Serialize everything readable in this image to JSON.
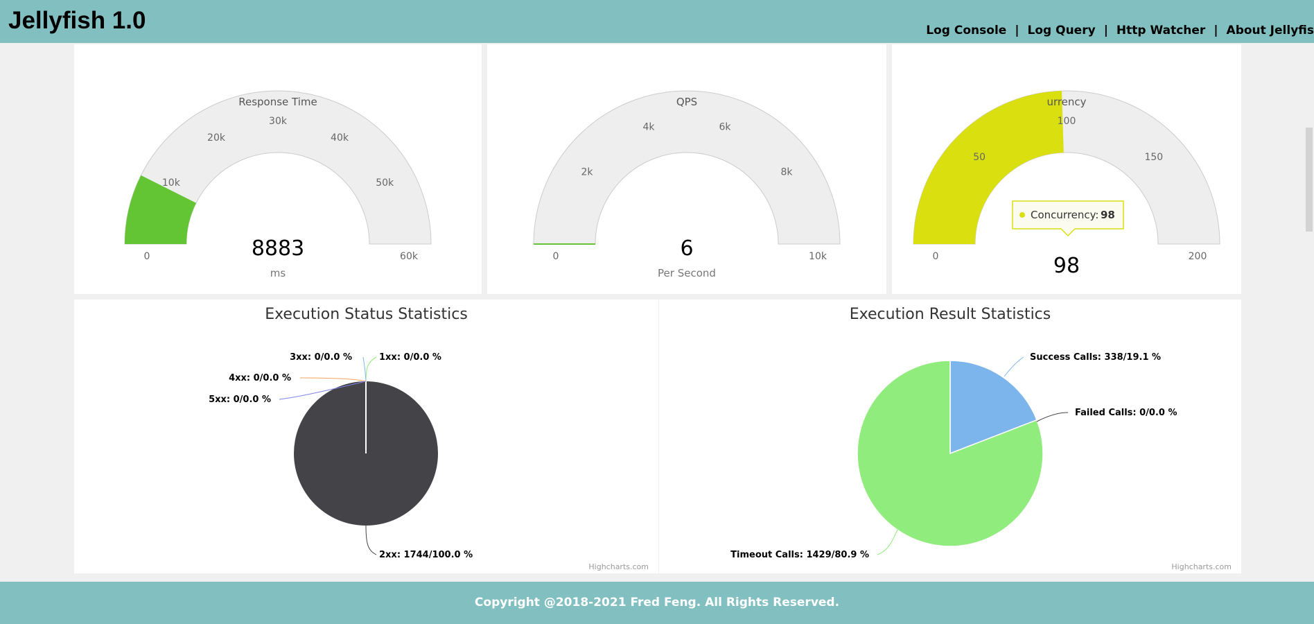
{
  "app": {
    "title": "Jellyfish 1.0"
  },
  "nav": {
    "items": [
      "Log Console",
      "Log Query",
      "Http Watcher",
      "About Jellyfis"
    ],
    "separator": "|"
  },
  "gauges": [
    {
      "title": "Response Time",
      "value": 8883,
      "value_label": "8883",
      "unit": "ms",
      "min": 0,
      "max": 60000,
      "color": "#63c434",
      "ticks": [
        "0",
        "10k",
        "20k",
        "30k",
        "40k",
        "50k",
        "60k"
      ]
    },
    {
      "title": "QPS",
      "value": 6,
      "value_label": "6",
      "unit": "Per Second",
      "min": 0,
      "max": 10000,
      "color": "#63c434",
      "ticks": [
        "0",
        "2k",
        "4k",
        "6k",
        "8k",
        "10k"
      ]
    },
    {
      "title": "Concurrency",
      "title_visible": "urrency",
      "value": 98,
      "value_label": "98",
      "unit": "",
      "min": 0,
      "max": 200,
      "color": "#dadf10",
      "ticks": [
        "0",
        "50",
        "100",
        "150",
        "200"
      ],
      "tooltip": {
        "label": "Concurrency:",
        "value": "98"
      }
    }
  ],
  "chart_data": [
    {
      "type": "pie",
      "title": "Execution Status Statistics",
      "series": [
        {
          "name": "1xx",
          "count": 0,
          "percent": 0.0,
          "label": "1xx: 0/0.0 %",
          "color": "#90ed7d"
        },
        {
          "name": "2xx",
          "count": 1744,
          "percent": 100.0,
          "label": "2xx: 1744/100.0 %",
          "color": "#434348"
        },
        {
          "name": "3xx",
          "count": 0,
          "percent": 0.0,
          "label": "3xx: 0/0.0 %",
          "color": "#7cb5ec"
        },
        {
          "name": "4xx",
          "count": 0,
          "percent": 0.0,
          "label": "4xx: 0/0.0 %",
          "color": "#f7a35c"
        },
        {
          "name": "5xx",
          "count": 0,
          "percent": 0.0,
          "label": "5xx: 0/0.0 %",
          "color": "#8085e9"
        }
      ],
      "credit": "Highcharts.com"
    },
    {
      "type": "pie",
      "title": "Execution Result Statistics",
      "series": [
        {
          "name": "Success Calls",
          "count": 338,
          "percent": 19.1,
          "label": "Success Calls: 338/19.1 %",
          "color": "#7cb5ec"
        },
        {
          "name": "Failed Calls",
          "count": 0,
          "percent": 0.0,
          "label": "Failed Calls: 0/0.0 %",
          "color": "#434348"
        },
        {
          "name": "Timeout Calls",
          "count": 1429,
          "percent": 80.9,
          "label": "Timeout Calls: 1429/80.9 %",
          "color": "#90ed7d"
        }
      ],
      "credit": "Highcharts.com"
    }
  ],
  "footer": {
    "text": "Copyright @2018-2021 Fred Feng. All Rights Reserved."
  }
}
